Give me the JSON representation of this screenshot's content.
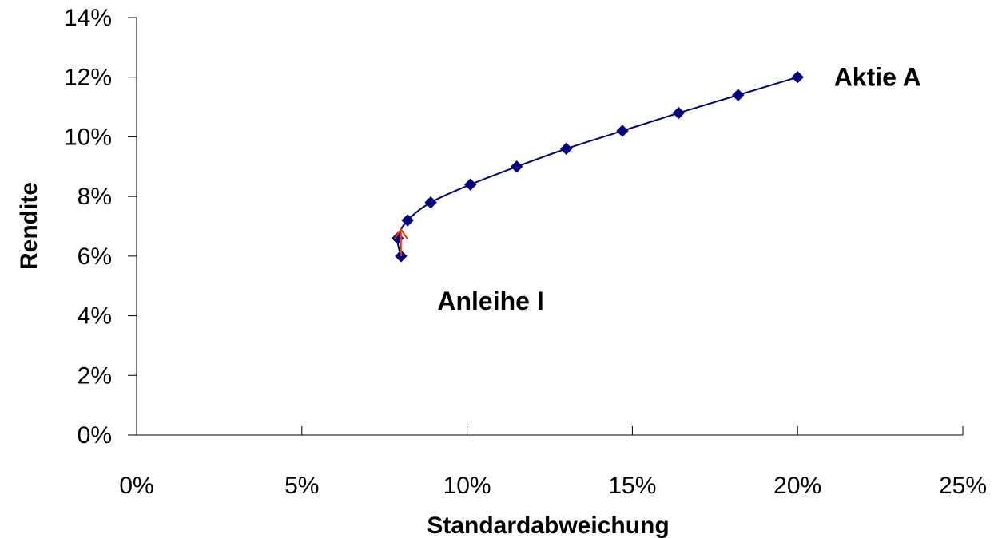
{
  "chart_data": {
    "type": "scatter",
    "title": "",
    "xlabel": "Standardabweichung",
    "ylabel": "Rendite",
    "xlim": [
      0,
      0.25
    ],
    "ylim": [
      0,
      0.14
    ],
    "x_ticks": [
      "0%",
      "5%",
      "10%",
      "15%",
      "20%",
      "25%"
    ],
    "y_ticks": [
      "0%",
      "2%",
      "4%",
      "6%",
      "8%",
      "10%",
      "12%",
      "14%"
    ],
    "grid": false,
    "legend": false,
    "series": [
      {
        "color": "#000080",
        "marker": "diamond",
        "line": "smooth",
        "points": [
          {
            "x": 0.08,
            "y": 0.06
          },
          {
            "x": 0.079,
            "y": 0.066
          },
          {
            "x": 0.082,
            "y": 0.072
          },
          {
            "x": 0.089,
            "y": 0.078
          },
          {
            "x": 0.101,
            "y": 0.084
          },
          {
            "x": 0.115,
            "y": 0.09
          },
          {
            "x": 0.13,
            "y": 0.096
          },
          {
            "x": 0.147,
            "y": 0.102
          },
          {
            "x": 0.164,
            "y": 0.108
          },
          {
            "x": 0.182,
            "y": 0.114
          },
          {
            "x": 0.2,
            "y": 0.12
          }
        ]
      }
    ],
    "arrow": {
      "color": "#FF3300",
      "from": {
        "x": 0.08,
        "y": 0.06
      },
      "to": {
        "x": 0.08,
        "y": 0.069
      }
    },
    "annotations": [
      {
        "text": "Aktie A",
        "x": 0.211,
        "y": 0.12
      },
      {
        "text": "Anleihe I",
        "x": 0.091,
        "y": 0.045
      }
    ]
  }
}
